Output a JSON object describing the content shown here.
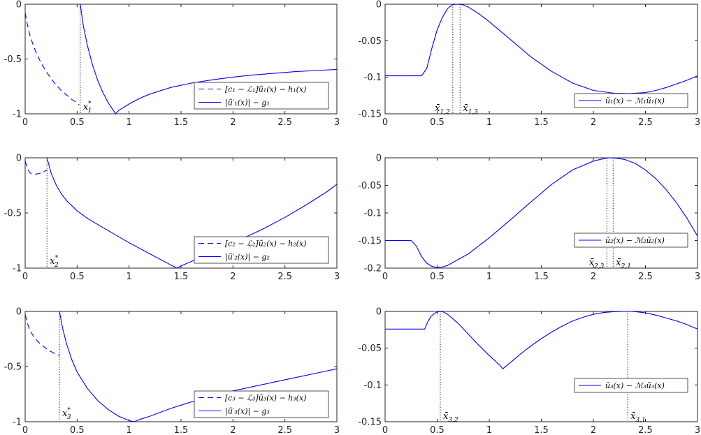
{
  "chart_data": [
    {
      "id": "p11",
      "type": "line",
      "xlim": [
        0,
        3
      ],
      "ylim": [
        -1,
        0
      ],
      "xticks": [
        "0",
        "0.5",
        "1",
        "1.5",
        "2",
        "2.5",
        "3"
      ],
      "yticks": [
        "-1",
        "-0.5",
        "0"
      ],
      "series": [
        {
          "name": "[c₁ − ℒ₁]ũ₁(x) − h₁(x)",
          "style": "dashed",
          "x": [
            0,
            0.02,
            0.05,
            0.1,
            0.15,
            0.2,
            0.25,
            0.3,
            0.35,
            0.4,
            0.45,
            0.5,
            0.52
          ],
          "y": [
            -0.08,
            -0.18,
            -0.3,
            -0.43,
            -0.53,
            -0.61,
            -0.68,
            -0.74,
            -0.79,
            -0.83,
            -0.87,
            -0.9,
            -0.92
          ]
        },
        {
          "name": "|ũ′₁(x)| − g₁",
          "style": "solid",
          "x": [
            0.53,
            0.56,
            0.6,
            0.65,
            0.7,
            0.75,
            0.8,
            0.85,
            0.87,
            0.9,
            1.0,
            1.1,
            1.2,
            1.4,
            1.6,
            1.8,
            2.0,
            2.2,
            2.4,
            2.6,
            2.8,
            3.0
          ],
          "y": [
            0,
            -0.2,
            -0.38,
            -0.56,
            -0.7,
            -0.81,
            -0.9,
            -0.97,
            -1.0,
            -0.97,
            -0.91,
            -0.86,
            -0.82,
            -0.76,
            -0.72,
            -0.69,
            -0.665,
            -0.645,
            -0.63,
            -0.615,
            -0.605,
            -0.595
          ]
        }
      ],
      "vlines": [
        {
          "x": 0.53,
          "label": "x*",
          "sub": "1"
        }
      ],
      "legend_position": "right"
    },
    {
      "id": "p12",
      "type": "line",
      "xlim": [
        0,
        3
      ],
      "ylim": [
        -0.15,
        0
      ],
      "xticks": [
        "0",
        "0.5",
        "1",
        "1.5",
        "2",
        "2.5",
        "3"
      ],
      "yticks": [
        "-0.15",
        "-0.1",
        "-0.05",
        "0"
      ],
      "series": [
        {
          "name": "ũ₁(x) − ℳ₁ũ₁(x)",
          "style": "solid",
          "x": [
            0,
            0.35,
            0.4,
            0.45,
            0.5,
            0.55,
            0.6,
            0.65,
            0.7,
            0.75,
            0.8,
            0.9,
            1.0,
            1.2,
            1.4,
            1.6,
            1.8,
            2.0,
            2.2,
            2.35,
            2.5,
            2.6,
            2.7,
            2.8,
            2.9,
            3.0
          ],
          "y": [
            -0.098,
            -0.098,
            -0.088,
            -0.06,
            -0.035,
            -0.018,
            -0.006,
            -0.0005,
            0,
            -0.001,
            -0.004,
            -0.013,
            -0.024,
            -0.048,
            -0.072,
            -0.092,
            -0.108,
            -0.118,
            -0.1218,
            -0.1222,
            -0.121,
            -0.118,
            -0.114,
            -0.109,
            -0.104,
            -0.098
          ]
        }
      ],
      "vlines": [
        {
          "x": 0.65,
          "label": "x̄",
          "sub": "1,2",
          "side": "left"
        },
        {
          "x": 0.72,
          "label": "x̄",
          "sub": "1,3",
          "side": "right"
        }
      ],
      "legend_position": "bottom-right"
    },
    {
      "id": "p21",
      "type": "line",
      "xlim": [
        0,
        3
      ],
      "ylim": [
        -1,
        0
      ],
      "xticks": [
        "0",
        "0.5",
        "1",
        "1.5",
        "2",
        "2.5",
        "3"
      ],
      "yticks": [
        "-1",
        "-0.5",
        "0"
      ],
      "series": [
        {
          "name": "[c₂ − ℒ₂]ũ₂(x) − h₂(x)",
          "style": "dashed",
          "x": [
            0,
            0.02,
            0.04,
            0.06,
            0.08,
            0.1,
            0.12,
            0.14,
            0.16,
            0.18,
            0.2,
            0.21
          ],
          "y": [
            -0.03,
            -0.09,
            -0.13,
            -0.145,
            -0.15,
            -0.148,
            -0.145,
            -0.14,
            -0.133,
            -0.125,
            -0.115,
            -0.11
          ]
        },
        {
          "name": "|ũ′₂(x)| − g₂",
          "style": "solid",
          "x": [
            0.21,
            0.25,
            0.3,
            0.35,
            0.4,
            0.5,
            0.6,
            0.8,
            1.0,
            1.2,
            1.4,
            1.46,
            1.5,
            1.7,
            1.9,
            2.1,
            2.3,
            2.5,
            2.7,
            2.9,
            3.0
          ],
          "y": [
            0,
            -0.14,
            -0.25,
            -0.33,
            -0.39,
            -0.48,
            -0.55,
            -0.66,
            -0.77,
            -0.87,
            -0.97,
            -1.0,
            -0.98,
            -0.9,
            -0.82,
            -0.73,
            -0.64,
            -0.54,
            -0.43,
            -0.31,
            -0.24
          ]
        }
      ],
      "vlines": [
        {
          "x": 0.21,
          "label": "x*",
          "sub": "2"
        }
      ],
      "legend_position": "bottom-right"
    },
    {
      "id": "p22",
      "type": "line",
      "xlim": [
        0,
        3
      ],
      "ylim": [
        -0.2,
        0
      ],
      "xticks": [
        "0",
        "0.5",
        "1",
        "1.5",
        "2",
        "2.5",
        "3"
      ],
      "yticks": [
        "-0.2",
        "-0.15",
        "-0.1",
        "-0.05",
        "0"
      ],
      "series": [
        {
          "name": "ũ₂(x) − ℳ₂ũ₂(x)",
          "style": "solid",
          "x": [
            0,
            0.25,
            0.3,
            0.35,
            0.4,
            0.45,
            0.5,
            0.55,
            0.6,
            0.8,
            1.0,
            1.2,
            1.4,
            1.6,
            1.8,
            2.0,
            2.1,
            2.15,
            2.2,
            2.3,
            2.4,
            2.5,
            2.6,
            2.7,
            2.8,
            2.9,
            3.0
          ],
          "y": [
            -0.15,
            -0.15,
            -0.16,
            -0.179,
            -0.191,
            -0.197,
            -0.199,
            -0.198,
            -0.195,
            -0.174,
            -0.145,
            -0.113,
            -0.08,
            -0.048,
            -0.022,
            -0.006,
            -0.0015,
            0,
            -0.0003,
            -0.003,
            -0.01,
            -0.022,
            -0.038,
            -0.058,
            -0.082,
            -0.11,
            -0.142
          ]
        }
      ],
      "vlines": [
        {
          "x": 2.13,
          "label": "x̄",
          "sub": "2,3",
          "side": "left"
        },
        {
          "x": 2.19,
          "label": "x̄",
          "sub": "2,1",
          "side": "right"
        }
      ],
      "legend_position": "top-right"
    },
    {
      "id": "p31",
      "type": "line",
      "xlim": [
        0,
        3
      ],
      "ylim": [
        -1,
        0
      ],
      "xticks": [
        "0",
        "0.5",
        "1",
        "1.5",
        "2",
        "2.5",
        "3"
      ],
      "yticks": [
        "-1",
        "-0.5",
        "0"
      ],
      "series": [
        {
          "name": "[c₃ − ℒ₃]ũ₃(x) − h₃(x)",
          "style": "dashed",
          "x": [
            0,
            0.02,
            0.04,
            0.07,
            0.1,
            0.14,
            0.18,
            0.22,
            0.26,
            0.3,
            0.33
          ],
          "y": [
            -0.03,
            -0.1,
            -0.16,
            -0.21,
            -0.25,
            -0.29,
            -0.32,
            -0.35,
            -0.37,
            -0.39,
            -0.4
          ]
        },
        {
          "name": "|ũ′₃(x)| − g₃",
          "style": "solid",
          "x": [
            0.33,
            0.36,
            0.4,
            0.45,
            0.5,
            0.6,
            0.7,
            0.8,
            0.9,
            1.0,
            1.05,
            1.1,
            1.2,
            1.4,
            1.6,
            1.8,
            2.0,
            2.2,
            2.4,
            2.6,
            2.8,
            3.0
          ],
          "y": [
            0,
            -0.15,
            -0.3,
            -0.44,
            -0.55,
            -0.7,
            -0.81,
            -0.89,
            -0.95,
            -0.99,
            -1.0,
            -0.98,
            -0.95,
            -0.88,
            -0.82,
            -0.77,
            -0.72,
            -0.68,
            -0.64,
            -0.6,
            -0.56,
            -0.52
          ]
        }
      ],
      "vlines": [
        {
          "x": 0.33,
          "label": "x*",
          "sub": "3"
        }
      ],
      "legend_position": "bottom-right"
    },
    {
      "id": "p32",
      "type": "line",
      "xlim": [
        0,
        3
      ],
      "ylim": [
        -0.15,
        0
      ],
      "xticks": [
        "0",
        "0.5",
        "1",
        "1.5",
        "2",
        "2.5",
        "3"
      ],
      "yticks": [
        "-0.15",
        "-0.1",
        "-0.05",
        "0"
      ],
      "series": [
        {
          "name": "ũ₃(x) − ℳ₃ũ₃(x)",
          "style": "solid",
          "x": [
            0,
            0.38,
            0.41,
            0.44,
            0.47,
            0.5,
            0.53,
            0.56,
            0.6,
            0.7,
            0.8,
            0.9,
            1.0,
            1.1,
            1.13,
            1.2,
            1.3,
            1.4,
            1.5,
            1.6,
            1.7,
            1.8,
            1.9,
            2.0,
            2.1,
            2.2,
            2.3,
            2.35,
            2.4,
            2.5,
            2.6,
            2.7,
            2.8,
            2.9,
            3.0
          ],
          "y": [
            -0.024,
            -0.024,
            -0.014,
            -0.007,
            -0.003,
            -0.0008,
            0,
            -0.0008,
            -0.004,
            -0.016,
            -0.031,
            -0.046,
            -0.06,
            -0.073,
            -0.078,
            -0.07,
            -0.058,
            -0.047,
            -0.037,
            -0.028,
            -0.02,
            -0.013,
            -0.008,
            -0.004,
            -0.0015,
            -0.0003,
            0,
            0,
            -0.0003,
            -0.002,
            -0.005,
            -0.009,
            -0.013,
            -0.018,
            -0.024
          ]
        }
      ],
      "vlines": [
        {
          "x": 0.53,
          "label": "x̄",
          "sub": "3,2",
          "side": "right"
        },
        {
          "x": 2.33,
          "label": "x̄",
          "sub": "3,1",
          "side": "right"
        }
      ],
      "legend_position": "right"
    }
  ]
}
